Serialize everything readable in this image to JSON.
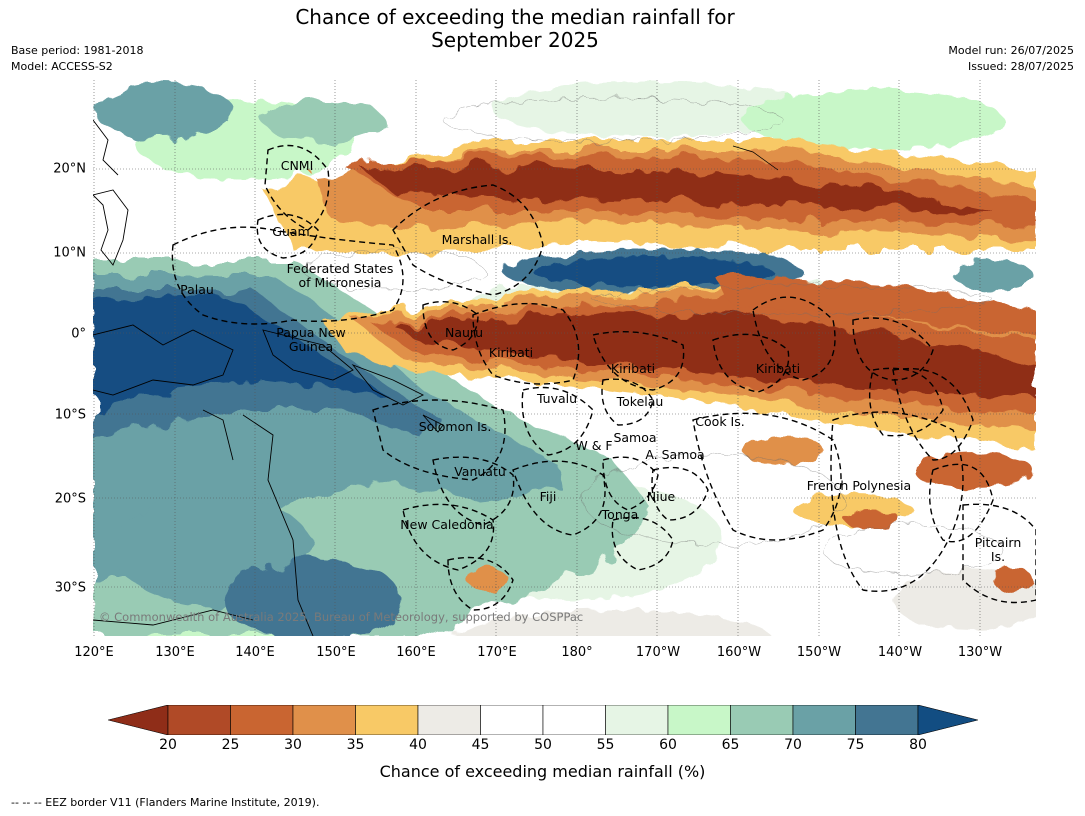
{
  "title": {
    "line1": "Chance of exceeding the median rainfall for",
    "line2": "September 2025"
  },
  "meta": {
    "base_period": "Base period: 1981-2018",
    "model": "Model: ACCESS-S2",
    "model_run": "Model run: 26/07/2025",
    "issued": "Issued: 28/07/2025"
  },
  "map": {
    "lat_ticks": [
      "20°N",
      "10°N",
      "0°",
      "10°S",
      "20°S",
      "30°S"
    ],
    "lon_ticks": [
      "120°E",
      "130°E",
      "140°E",
      "150°E",
      "160°E",
      "170°E",
      "180°",
      "170°W",
      "160°W",
      "150°W",
      "140°W",
      "130°W"
    ],
    "place_labels": [
      {
        "name": "CNMI"
      },
      {
        "name": "Guam"
      },
      {
        "name": "Marshall Is."
      },
      {
        "name": "Federated States\nof Micronesia"
      },
      {
        "name": "Palau"
      },
      {
        "name": "Papua New\nGuinea"
      },
      {
        "name": "Nauru"
      },
      {
        "name": "Kiribati"
      },
      {
        "name": "Kiribati"
      },
      {
        "name": "Kiribati"
      },
      {
        "name": "Tuvalu"
      },
      {
        "name": "Tokelau"
      },
      {
        "name": "Cook Is."
      },
      {
        "name": "Solomon Is."
      },
      {
        "name": "W & F"
      },
      {
        "name": "Samoa"
      },
      {
        "name": "A. Samoa"
      },
      {
        "name": "Vanuatu"
      },
      {
        "name": "Fiji"
      },
      {
        "name": "Niue"
      },
      {
        "name": "Tonga"
      },
      {
        "name": "French Polynesia"
      },
      {
        "name": "New Caledonia"
      },
      {
        "name": "Pitcairn\nIs."
      }
    ],
    "copyright": "© Commonwealth of Australia 2025, Bureau of Meteorology, supported by COSPPac"
  },
  "colorbar": {
    "ticks": [
      "20",
      "25",
      "30",
      "35",
      "40",
      "45",
      "50",
      "55",
      "60",
      "65",
      "70",
      "75",
      "80"
    ],
    "colors": {
      "below20": "#8f2d18",
      "20-25": "#b04a27",
      "25-30": "#c96531",
      "30-35": "#e0904a",
      "35-40": "#f8c966",
      "40-45": "#edebe6",
      "45-50": "#ffffff",
      "50-55": "#ffffff",
      "55-60": "#e6f5e5",
      "60-65": "#c8f7c8",
      "65-70": "#99cbb4",
      "70-75": "#6aa1a6",
      "75-80": "#437592",
      "above80": "#124d82"
    },
    "label": "Chance of exceeding median rainfall (%)"
  },
  "footnote": "--  --  -- EEZ border V11 (Flanders Marine Institute, 2019)."
}
